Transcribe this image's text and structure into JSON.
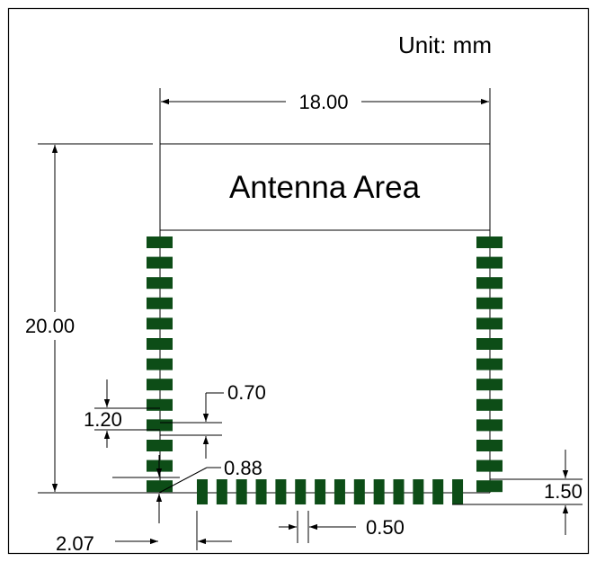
{
  "unit_label": "Unit: mm",
  "antenna_label": "Antenna Area",
  "dimensions": {
    "module_width": "18.00",
    "module_height": "20.00",
    "pad_pitch": "1.20",
    "pad_width": "0.70",
    "pad_offset": "0.88",
    "pad_gap": "0.50",
    "pad_length": "1.50",
    "edge_offset": "2.07"
  },
  "pads": {
    "left_count": 13,
    "right_count": 13,
    "bottom_count": 14
  },
  "colors": {
    "pad": "#0d4d17",
    "line": "#000000",
    "background": "#ffffff"
  }
}
